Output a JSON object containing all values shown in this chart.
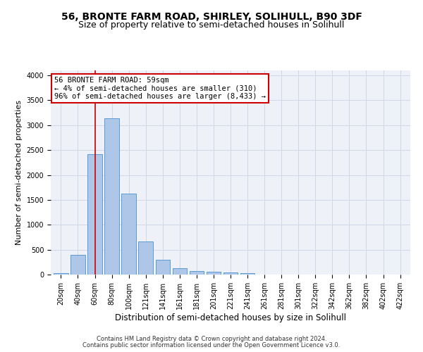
{
  "title": "56, BRONTE FARM ROAD, SHIRLEY, SOLIHULL, B90 3DF",
  "subtitle": "Size of property relative to semi-detached houses in Solihull",
  "xlabel": "Distribution of semi-detached houses by size in Solihull",
  "ylabel": "Number of semi-detached properties",
  "footer1": "Contains HM Land Registry data © Crown copyright and database right 2024.",
  "footer2": "Contains public sector information licensed under the Open Government Licence v3.0.",
  "bar_categories": [
    "20sqm",
    "40sqm",
    "60sqm",
    "80sqm",
    "100sqm",
    "121sqm",
    "141sqm",
    "161sqm",
    "181sqm",
    "201sqm",
    "221sqm",
    "241sqm",
    "261sqm",
    "281sqm",
    "301sqm",
    "322sqm",
    "342sqm",
    "362sqm",
    "382sqm",
    "402sqm",
    "422sqm"
  ],
  "bar_values": [
    25,
    400,
    2420,
    3140,
    1630,
    670,
    290,
    130,
    65,
    50,
    45,
    35,
    0,
    0,
    0,
    0,
    0,
    0,
    0,
    0,
    0
  ],
  "bar_color": "#aec6e8",
  "bar_edge_color": "#5b9bd5",
  "highlight_bar_index": 2,
  "highlight_line_color": "#cc0000",
  "annotation_line1": "56 BRONTE FARM ROAD: 59sqm",
  "annotation_line2": "← 4% of semi-detached houses are smaller (310)",
  "annotation_line3": "96% of semi-detached houses are larger (8,433) →",
  "ylim": [
    0,
    4100
  ],
  "yticks": [
    0,
    500,
    1000,
    1500,
    2000,
    2500,
    3000,
    3500,
    4000
  ],
  "grid_color": "#d0d8e8",
  "background_color": "#eef2f8",
  "title_fontsize": 10,
  "subtitle_fontsize": 9,
  "annotation_fontsize": 7.5,
  "ylabel_fontsize": 8,
  "xlabel_fontsize": 8.5,
  "tick_fontsize": 7,
  "footer_fontsize": 6
}
